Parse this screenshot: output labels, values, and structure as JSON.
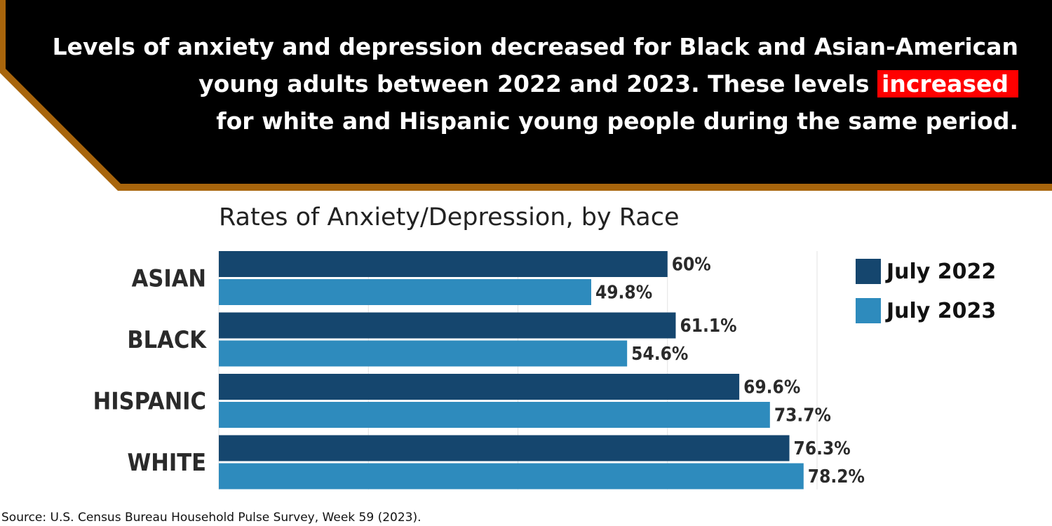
{
  "banner": {
    "headline_part1": "Levels of anxiety and depression decreased for Black and Asian-American young adults between 2022 and 2023. These levels",
    "headline_highlight": "increased",
    "headline_part2": "for white and Hispanic young people during the same period.",
    "background_color": "#000000",
    "border_color": "#a8650c",
    "highlight_color": "#ff0000"
  },
  "chart_data": {
    "type": "bar",
    "orientation": "horizontal",
    "title": "Rates of Anxiety/Depression, by Race",
    "categories": [
      "ASIAN",
      "BLACK",
      "HISPANIC",
      "WHITE"
    ],
    "series": [
      {
        "name": "July 2022",
        "color": "#15466e",
        "values": [
          60,
          61.1,
          69.6,
          76.3
        ],
        "labels": [
          "60%",
          "61.1%",
          "69.6%",
          "76.3%"
        ]
      },
      {
        "name": "July 2023",
        "color": "#2e8bbd",
        "values": [
          49.8,
          54.6,
          73.7,
          78.2
        ],
        "labels": [
          "49.8%",
          "54.6%",
          "73.7%",
          "78.2%"
        ]
      }
    ],
    "xlim": [
      0,
      80
    ],
    "grid": true,
    "legend_position": "right"
  },
  "source": "Source: U.S. Census Bureau Household Pulse Survey, Week 59 (2023)."
}
